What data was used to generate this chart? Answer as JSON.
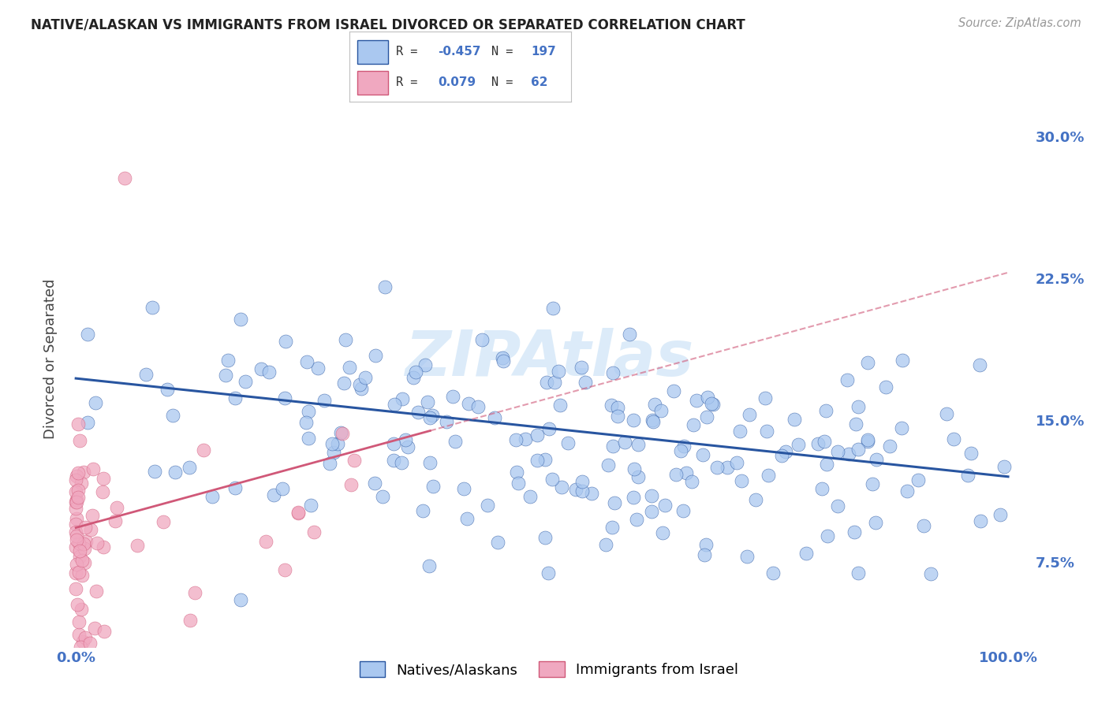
{
  "title": "NATIVE/ALASKAN VS IMMIGRANTS FROM ISRAEL DIVORCED OR SEPARATED CORRELATION CHART",
  "source": "Source: ZipAtlas.com",
  "ylabel": "Divorced or Separated",
  "yticks": [
    "7.5%",
    "15.0%",
    "22.5%",
    "30.0%"
  ],
  "ytick_vals": [
    0.075,
    0.15,
    0.225,
    0.3
  ],
  "xlim": [
    0.0,
    1.0
  ],
  "ylim": [
    0.03,
    0.335
  ],
  "blue_color": "#aac8f0",
  "pink_color": "#f0a8c0",
  "blue_line_color": "#2855a0",
  "pink_line_color": "#d05878",
  "background_color": "#ffffff",
  "grid_color": "#d8d8d8",
  "watermark_color": "#c5dff5",
  "title_fontsize": 12,
  "tick_fontsize": 13
}
